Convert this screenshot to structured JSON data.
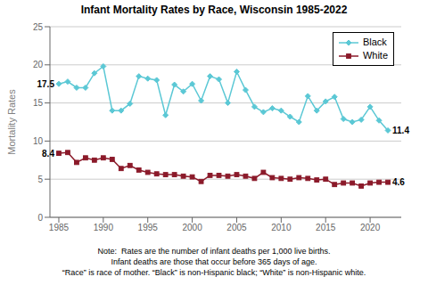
{
  "chart_data": {
    "type": "line",
    "title": "Infant Mortality Rates by Race, Wisconsin 1985-2022",
    "ylabel": "Mortality Rates",
    "x": [
      1985,
      1986,
      1987,
      1988,
      1989,
      1990,
      1991,
      1992,
      1993,
      1994,
      1995,
      1996,
      1997,
      1998,
      1999,
      2000,
      2001,
      2002,
      2003,
      2004,
      2005,
      2006,
      2007,
      2008,
      2009,
      2010,
      2011,
      2012,
      2013,
      2014,
      2015,
      2016,
      2017,
      2018,
      2019,
      2020,
      2021,
      2022
    ],
    "series": [
      {
        "name": "Black",
        "color": "#5BC8D5",
        "marker": "diamond",
        "values": [
          17.5,
          17.8,
          17.0,
          17.0,
          18.9,
          19.8,
          14.0,
          14.0,
          14.9,
          18.5,
          18.2,
          18.0,
          13.4,
          17.4,
          16.5,
          17.5,
          15.3,
          18.5,
          18.1,
          15.0,
          19.1,
          16.7,
          14.5,
          13.8,
          14.3,
          14.0,
          13.2,
          12.5,
          15.9,
          14.0,
          15.2,
          15.8,
          12.9,
          12.5,
          12.8,
          14.5,
          12.7,
          11.4
        ]
      },
      {
        "name": "White",
        "color": "#8B1A2A",
        "marker": "square",
        "values": [
          8.4,
          8.5,
          7.2,
          7.8,
          7.5,
          7.8,
          7.6,
          6.4,
          6.8,
          6.2,
          5.9,
          5.7,
          5.6,
          5.6,
          5.4,
          5.3,
          4.7,
          5.5,
          5.5,
          5.4,
          5.6,
          5.4,
          5.1,
          5.9,
          5.2,
          5.1,
          5.0,
          5.2,
          5.1,
          4.9,
          5.0,
          4.3,
          4.5,
          4.5,
          4.1,
          4.5,
          4.6,
          4.6
        ]
      }
    ],
    "xlim": [
      1984,
      2023.5
    ],
    "ylim": [
      0,
      25
    ],
    "xticks": [
      1985,
      1990,
      1995,
      2000,
      2005,
      2010,
      2015,
      2020
    ],
    "yticks": [
      0,
      5,
      10,
      15,
      20,
      25
    ],
    "grid": "y",
    "legend": "upper right",
    "annotations": [
      {
        "text": "17.5",
        "x": 1985,
        "y": 17.5
      },
      {
        "text": "11.4",
        "x": 2022,
        "y": 11.4
      },
      {
        "text": "8.4",
        "x": 1985,
        "y": 8.4
      },
      {
        "text": "4.6",
        "x": 2022,
        "y": 4.6
      }
    ],
    "notes": [
      "Note:  Rates are the number of infant deaths per 1,000 live births.",
      "Infant deaths are those that occur before 365 days of age.",
      "“Race” is race of mother. “Black” is non-Hispanic black; “White” is non-Hispanic white."
    ]
  }
}
